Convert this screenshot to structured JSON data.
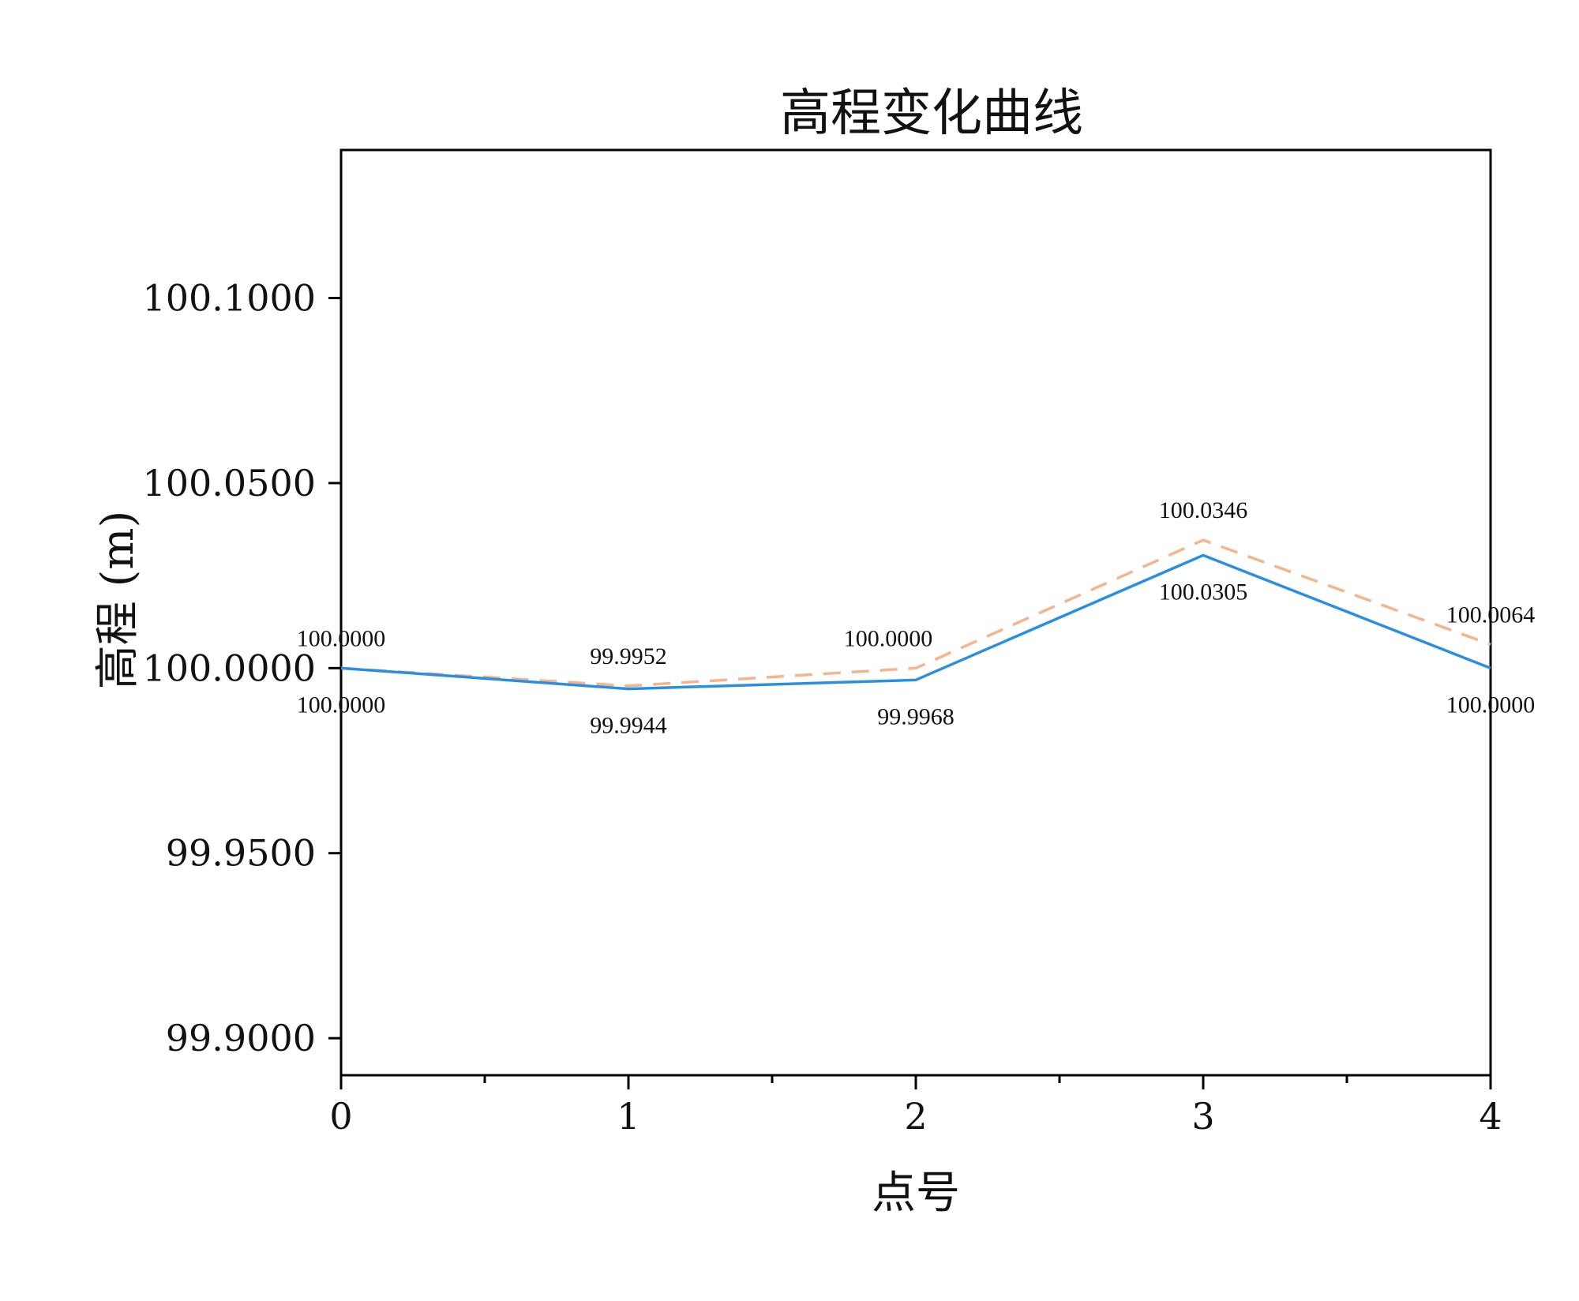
{
  "chart_data": {
    "type": "line",
    "title": "高程变化曲线",
    "xlabel": "点号",
    "ylabel": "高程 (m)",
    "x": [
      0,
      1,
      2,
      3,
      4
    ],
    "xlim": [
      0,
      4
    ],
    "ylim": [
      99.89,
      100.14
    ],
    "yticks": [
      99.9,
      99.95,
      100.0,
      100.05,
      100.1
    ],
    "ytick_labels": [
      "99.9000",
      "99.9500",
      "100.0000",
      "100.0500",
      "100.1000"
    ],
    "xticks": [
      0,
      1,
      2,
      3,
      4
    ],
    "xtick_labels": [
      "0",
      "1",
      "2",
      "3",
      "4"
    ],
    "x_minor_ticks": [
      0.5,
      1.5,
      2.5,
      3.5
    ],
    "grid": false,
    "legend": "none",
    "series": [
      {
        "style": "solid",
        "color": "#2b8fe0",
        "values": [
          100.0,
          99.9944,
          99.9968,
          100.0305,
          100.0
        ],
        "labels": [
          "100.0000",
          "99.9944",
          "99.9968",
          "100.0305",
          "100.0000"
        ],
        "label_position": "below"
      },
      {
        "style": "dashed",
        "color": "#f5b48c",
        "values": [
          100.0,
          99.9952,
          100.0,
          100.0346,
          100.0064
        ],
        "labels": [
          "100.0000",
          "99.9952",
          "100.0000",
          "100.0346",
          "100.0064"
        ],
        "label_position": "above"
      }
    ]
  }
}
